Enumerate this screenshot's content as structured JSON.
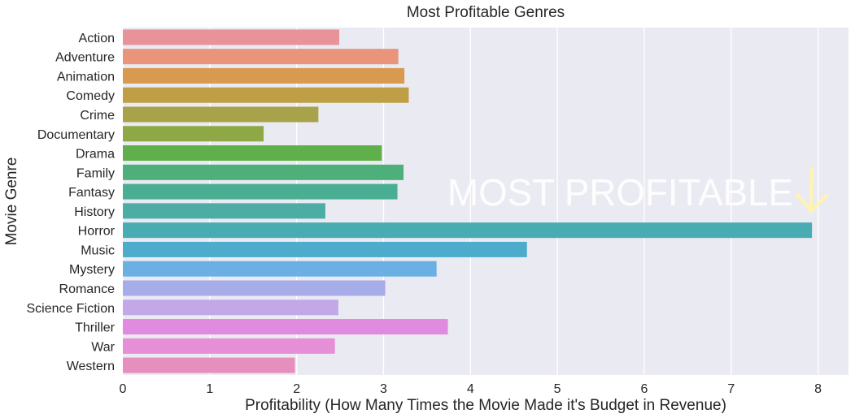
{
  "chart_data": {
    "type": "bar",
    "orientation": "horizontal",
    "title": "Most Profitable Genres",
    "xlabel": "Profitability (How Many Times the Movie Made it's Budget in Revenue)",
    "ylabel": "Movie Genre",
    "xlim": [
      0,
      8.35
    ],
    "xticks": [
      0,
      1,
      2,
      3,
      4,
      5,
      6,
      7,
      8
    ],
    "grid": true,
    "categories": [
      "Action",
      "Adventure",
      "Animation",
      "Comedy",
      "Crime",
      "Documentary",
      "Drama",
      "Family",
      "Fantasy",
      "History",
      "Horror",
      "Music",
      "Mystery",
      "Romance",
      "Science Fiction",
      "Thriller",
      "War",
      "Western"
    ],
    "values": [
      2.49,
      3.17,
      3.24,
      3.29,
      2.25,
      1.62,
      2.98,
      3.23,
      3.16,
      2.33,
      7.93,
      4.65,
      3.61,
      3.02,
      2.48,
      3.74,
      2.44,
      1.98
    ],
    "colors": [
      "#e8939a",
      "#e8957c",
      "#d89a4f",
      "#bf9f45",
      "#a8a24a",
      "#8ea845",
      "#5fb04a",
      "#4db07a",
      "#4aaf92",
      "#4cada5",
      "#4aacb3",
      "#4daccb",
      "#6ab0e2",
      "#a7ade8",
      "#c3a8e8",
      "#e08ae0",
      "#e58fd6",
      "#e68fbe"
    ],
    "background": "#eaeaf2",
    "annotation": {
      "text": "MOST PROFITABLE",
      "arrow_color": "#fff3b0"
    }
  }
}
